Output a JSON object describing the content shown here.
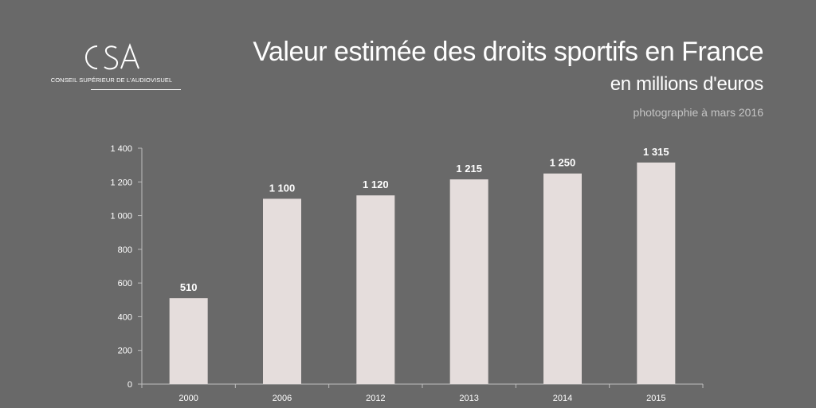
{
  "logo": {
    "name": "CSA",
    "caption": "CONSEIL SUPÉRIEUR DE L'AUDIOVISUEL"
  },
  "header": {
    "title": "Valeur estimée des droits sportifs en France",
    "subtitle": "en millions d'euros",
    "note": "photographie à mars 2016"
  },
  "colors": {
    "background": "#696969",
    "bar": "#e5dddc",
    "axis": "#bdbdbd",
    "tick_text": "#ffffff",
    "note": "#c4c4c4"
  },
  "chart_data": {
    "type": "bar",
    "categories": [
      "2000",
      "2006",
      "2012",
      "2013",
      "2014",
      "2015"
    ],
    "values": [
      510,
      1100,
      1120,
      1215,
      1250,
      1315
    ],
    "data_labels": [
      "510",
      "1 100",
      "1 120",
      "1 215",
      "1 250",
      "1 315"
    ],
    "y_ticks": [
      0,
      200,
      400,
      600,
      800,
      1000,
      1200,
      1400
    ],
    "y_tick_labels": [
      "0",
      "200",
      "400",
      "600",
      "800",
      "1 000",
      "1 200",
      "1 400"
    ],
    "ylim": [
      0,
      1400
    ],
    "grid": false,
    "legend": "none"
  }
}
